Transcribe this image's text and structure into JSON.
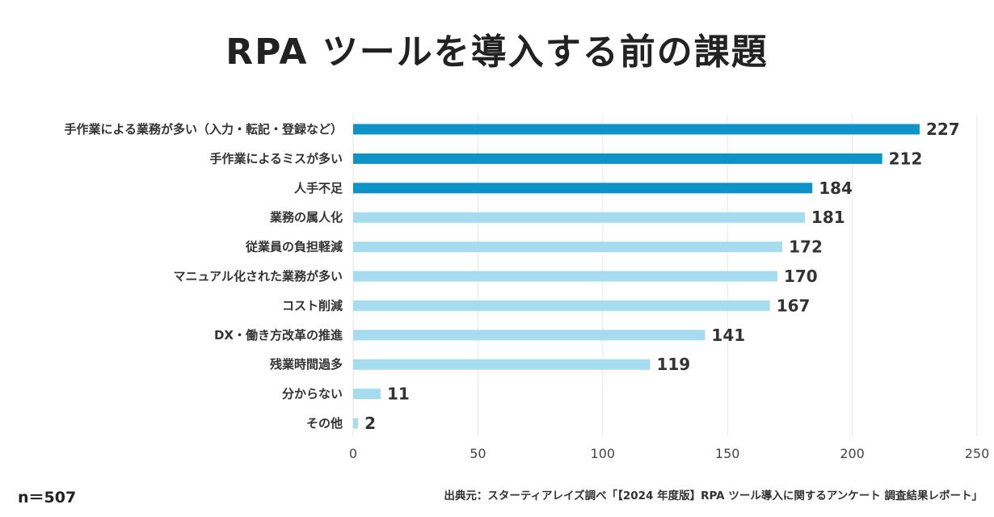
{
  "chart_data": {
    "type": "bar",
    "orientation": "horizontal",
    "title": "RPA ツールを導入する前の課題",
    "categories": [
      "手作業による業務が多い（入力・転記・登録など）",
      "手作業によるミスが多い",
      "人手不足",
      "業務の属人化",
      "従業員の負担軽減",
      "マニュアル化された業務が多い",
      "コスト削減",
      "DX・働き方改革の推進",
      "残業時間過多",
      "分からない",
      "その他"
    ],
    "values": [
      227,
      212,
      184,
      181,
      172,
      170,
      167,
      141,
      119,
      11,
      2
    ],
    "highlight_top": 3,
    "colors": {
      "highlight": "#0e93c8",
      "normal": "#a6dcef",
      "grid": "#e6e6e6"
    },
    "xlim": [
      0,
      250
    ],
    "xticks": [
      0,
      50,
      100,
      150,
      200,
      250
    ],
    "grid": true,
    "legend": "none"
  },
  "footer": {
    "n": "n＝507",
    "source": "出典元：スターティアレイズ調べ「【2024 年度版】RPA ツール導入に関するアンケート 調査結果レポート」"
  }
}
